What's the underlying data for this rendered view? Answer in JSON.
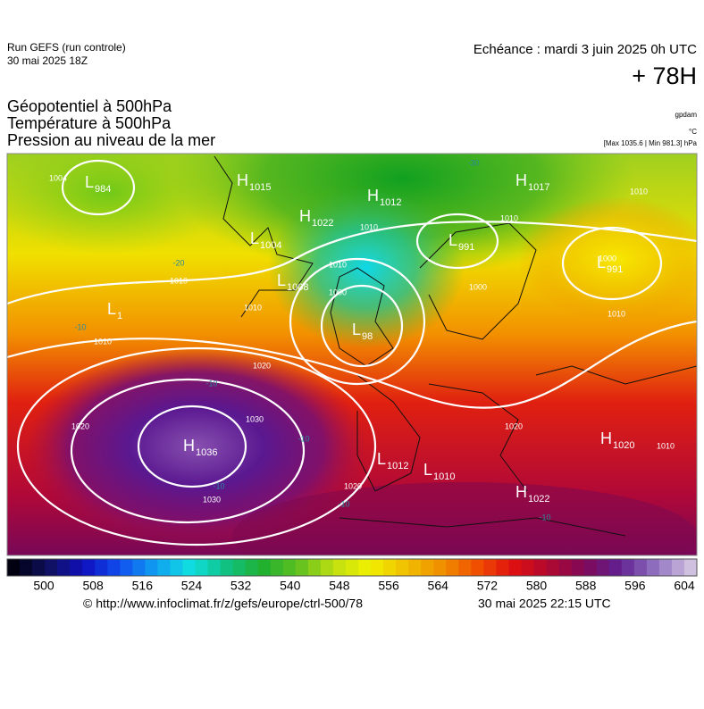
{
  "header": {
    "run": "Run GEFS (run controle)",
    "run_date": "30 mai 2025 18Z",
    "valid": "Echéance : mardi 3 juin 2025 0h UTC",
    "lead": "+ 78H",
    "fields": [
      "Géopotentiel à 500hPa",
      "Température à 500hPa",
      "Pression au niveau de la mer"
    ],
    "units": [
      "gpdam",
      "°C",
      "[Max 1035.6 | Min 981.3] hPa"
    ]
  },
  "centers": [
    {
      "kind": "L",
      "value": "984"
    },
    {
      "kind": "H",
      "value": "1015"
    },
    {
      "kind": "H",
      "value": "1022"
    },
    {
      "kind": "H",
      "value": "1012"
    },
    {
      "kind": "L",
      "value": "1004"
    },
    {
      "kind": "L",
      "value": "1008"
    },
    {
      "kind": "L",
      "value": "991"
    },
    {
      "kind": "H",
      "value": "1017"
    },
    {
      "kind": "L",
      "value": "991"
    },
    {
      "kind": "L",
      "value": "98"
    },
    {
      "kind": "L",
      "value": "1"
    },
    {
      "kind": "H",
      "value": "1036"
    },
    {
      "kind": "L",
      "value": "1012"
    },
    {
      "kind": "L",
      "value": "1010"
    },
    {
      "kind": "H",
      "value": "1020"
    },
    {
      "kind": "H",
      "value": "1022"
    }
  ],
  "isobar_labels": [
    "1004",
    "1010",
    "1010",
    "1010",
    "1010",
    "1000",
    "1010",
    "1020",
    "1020",
    "1030",
    "1030",
    "1020",
    "1010",
    "1010",
    "1000",
    "1000",
    "1010",
    "1010",
    "1020"
  ],
  "temperature_labels": [
    "-30",
    "-20",
    "-10",
    "-10",
    "-10",
    "-10",
    "-10",
    "-10"
  ],
  "colorbar": {
    "ticks": [
      500,
      508,
      516,
      524,
      532,
      540,
      548,
      556,
      564,
      572,
      580,
      588,
      596,
      604
    ]
  },
  "footer": {
    "source": "© http://www.infoclimat.fr/z/gefs/europe/ctrl-500/78",
    "issued": "30 mai 2025 22:15 UTC"
  }
}
